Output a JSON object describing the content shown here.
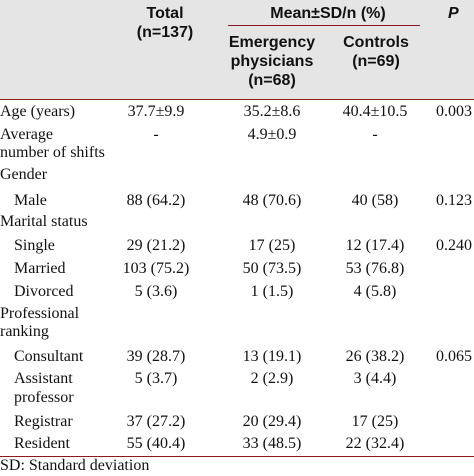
{
  "header": {
    "total_label": "Total",
    "total_n": "(n=137)",
    "group_label": "Mean±SD/n (%)",
    "p_label": "P",
    "emergency_label": "Emergency physicians",
    "emergency_line1": "Emergency",
    "emergency_line2": "physicians",
    "emergency_n": "(n=68)",
    "controls_label": "Controls",
    "controls_n": "(n=69)"
  },
  "rows": [
    {
      "label": "Age (years)",
      "total": "37.7±9.9",
      "emergency": "35.2±8.6",
      "controls": "40.4±10.5",
      "p": "0.003"
    },
    {
      "label": "Average number of shifts",
      "label_line1": "Average",
      "label_line2": "number of shifts",
      "total": "-",
      "emergency": "4.9±0.9",
      "controls": "-",
      "p": ""
    },
    {
      "label": "Gender"
    },
    {
      "label": "Male",
      "total": "88 (64.2)",
      "emergency": "48 (70.6)",
      "controls": "40 (58)",
      "p": "0.123"
    },
    {
      "label": "Marital status"
    },
    {
      "label": "Single",
      "total": "29 (21.2)",
      "emergency": "17 (25)",
      "controls": "12 (17.4)",
      "p": "0.240"
    },
    {
      "label": "Married",
      "total": "103 (75.2)",
      "emergency": "50 (73.5)",
      "controls": "53 (76.8)",
      "p": ""
    },
    {
      "label": "Divorced",
      "total": "5 (3.6)",
      "emergency": "1 (1.5)",
      "controls": "4 (5.8)",
      "p": ""
    },
    {
      "label": "Professional ranking",
      "label_line1": "Professional",
      "label_line2": "ranking"
    },
    {
      "label": "Consultant",
      "total": "39 (28.7)",
      "emergency": "13 (19.1)",
      "controls": "26 (38.2)",
      "p": "0.065"
    },
    {
      "label": "Assistant professor",
      "label_line1": "Assistant",
      "label_line2": "professor",
      "total": "5 (3.7)",
      "emergency": "2 (2.9)",
      "controls": "3 (4.4)",
      "p": ""
    },
    {
      "label": "Registrar",
      "total": "37 (27.2)",
      "emergency": "20 (29.4)",
      "controls": "17 (25)",
      "p": ""
    },
    {
      "label": "Resident",
      "total": "55 (40.4)",
      "emergency": "33 (48.5)",
      "controls": "22 (32.4)",
      "p": ""
    }
  ],
  "footnote": "SD: Standard deviation",
  "colors": {
    "header_bg": "#e6e5e5",
    "rule": "#8b1a1a"
  }
}
